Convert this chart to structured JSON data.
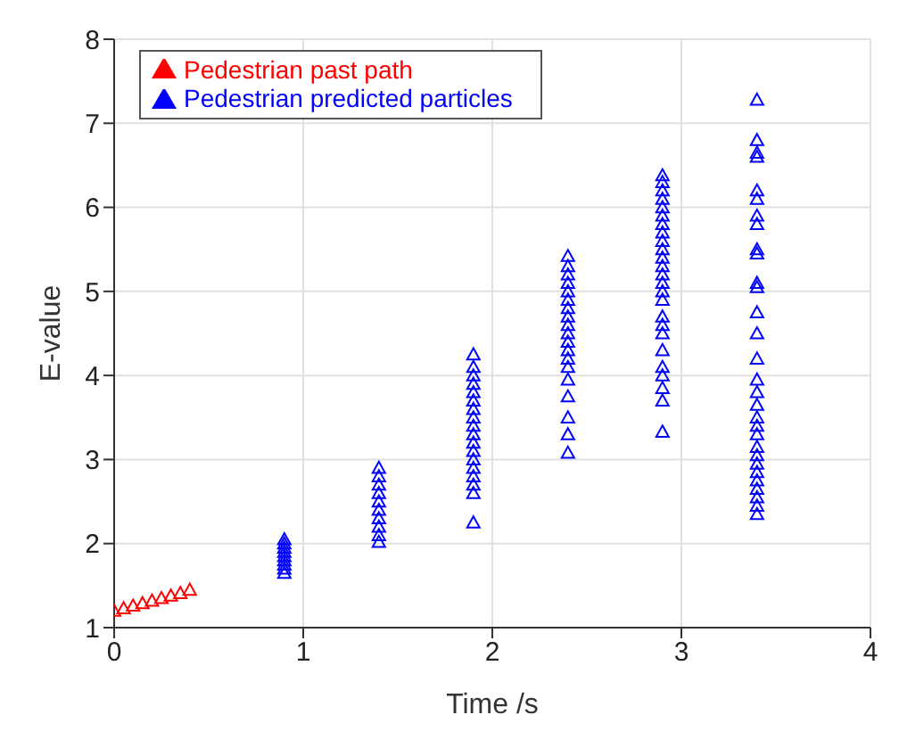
{
  "chart_data": {
    "type": "scatter",
    "xlabel": "Time /s",
    "ylabel": "E-value",
    "xlim": [
      0,
      4
    ],
    "xticks": [
      0,
      1,
      2,
      3,
      4
    ],
    "ylim": [
      1,
      8
    ],
    "yticks": [
      1,
      2,
      3,
      4,
      5,
      6,
      7,
      8
    ],
    "grid": true,
    "legend": "top left",
    "marker": "triangle",
    "series": [
      {
        "name": "Pedestrian past path",
        "color": "#ff0000",
        "x": [
          0,
          0.05,
          0.1,
          0.15,
          0.2,
          0.25,
          0.3,
          0.35,
          0.4
        ],
        "values": [
          1.2,
          1.23,
          1.26,
          1.29,
          1.32,
          1.35,
          1.38,
          1.41,
          1.45
        ]
      },
      {
        "name": "Pedestrian predicted particles",
        "color": "#0000ff",
        "x": [
          0.9,
          0.9,
          0.9,
          0.9,
          0.9,
          0.9,
          0.9,
          0.9,
          0.9,
          1.4,
          1.4,
          1.4,
          1.4,
          1.4,
          1.4,
          1.4,
          1.4,
          1.4,
          1.4,
          1.9,
          1.9,
          1.9,
          1.9,
          1.9,
          1.9,
          1.9,
          1.9,
          1.9,
          1.9,
          1.9,
          1.9,
          1.9,
          1.9,
          1.9,
          1.9,
          1.9,
          1.9,
          2.4,
          2.4,
          2.4,
          2.4,
          2.4,
          2.4,
          2.4,
          2.4,
          2.4,
          2.4,
          2.4,
          2.4,
          2.4,
          2.4,
          2.4,
          2.4,
          2.4,
          2.4,
          2.4,
          2.9,
          2.9,
          2.9,
          2.9,
          2.9,
          2.9,
          2.9,
          2.9,
          2.9,
          2.9,
          2.9,
          2.9,
          2.9,
          2.9,
          2.9,
          2.9,
          2.9,
          2.9,
          2.9,
          2.9,
          2.9,
          2.9,
          2.9,
          2.9,
          2.9,
          3.4,
          3.4,
          3.4,
          3.4,
          3.4,
          3.4,
          3.4,
          3.4,
          3.4,
          3.4,
          3.4,
          3.4,
          3.4,
          3.4,
          3.4,
          3.4,
          3.4,
          3.4,
          3.4,
          3.4,
          3.4,
          3.4,
          3.4,
          3.4,
          3.4,
          3.4,
          3.4,
          3.4,
          3.4,
          3.4
        ],
        "values": [
          1.65,
          1.7,
          1.75,
          1.8,
          1.85,
          1.9,
          1.95,
          2.0,
          2.05,
          2.02,
          2.1,
          2.2,
          2.3,
          2.4,
          2.5,
          2.6,
          2.7,
          2.8,
          2.9,
          2.25,
          2.6,
          2.7,
          2.8,
          2.9,
          3.0,
          3.1,
          3.2,
          3.3,
          3.4,
          3.5,
          3.6,
          3.7,
          3.8,
          3.9,
          4.0,
          4.1,
          4.25,
          3.08,
          3.3,
          3.5,
          3.75,
          3.95,
          4.1,
          4.2,
          4.3,
          4.4,
          4.5,
          4.6,
          4.7,
          4.8,
          4.9,
          5.0,
          5.1,
          5.2,
          5.3,
          5.42,
          3.33,
          3.7,
          3.85,
          4.0,
          4.1,
          4.3,
          4.5,
          4.6,
          4.7,
          4.9,
          5.0,
          5.1,
          5.2,
          5.3,
          5.4,
          5.5,
          5.6,
          5.7,
          5.8,
          5.9,
          6.0,
          6.1,
          6.2,
          6.3,
          6.38,
          2.35,
          2.45,
          2.55,
          2.65,
          2.75,
          2.85,
          2.95,
          3.05,
          3.15,
          3.3,
          3.4,
          3.5,
          3.65,
          3.8,
          3.95,
          4.2,
          4.5,
          4.75,
          5.05,
          5.1,
          5.45,
          5.5,
          5.8,
          5.9,
          6.1,
          6.2,
          6.6,
          6.65,
          6.8,
          7.28
        ]
      }
    ]
  }
}
